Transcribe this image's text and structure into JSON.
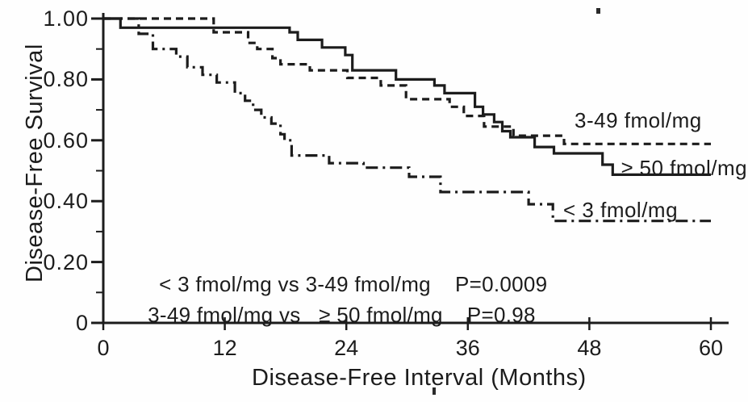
{
  "figure": {
    "description": "Kaplan-Meier disease-free survival curves by receptor level (fmol/mg), scanned journal figure"
  },
  "chart_data": {
    "type": "line",
    "subtype": "kaplan-meier-step",
    "title": "",
    "xlabel": "Disease-Free Interval (Months)",
    "ylabel": "Disease-Free Survival",
    "xlim": [
      0,
      60
    ],
    "ylim": [
      0,
      1.0
    ],
    "grid": false,
    "x_ticks": [
      0,
      12,
      24,
      36,
      48,
      60
    ],
    "x_tick_labels": [
      "0",
      "12",
      "24",
      "36",
      "48",
      "60"
    ],
    "y_ticks": [
      0,
      0.2,
      0.4,
      0.6,
      0.8,
      1.0
    ],
    "y_tick_labels": [
      "0",
      "0.20",
      "0.40",
      "0.60",
      "0.80",
      "1.00"
    ],
    "y_minor_ticks": [
      0.1,
      0.3,
      0.5,
      0.7,
      0.9
    ],
    "legend_position": "right-of-curve-ends",
    "colors": {
      "ink": "#1c1c1c",
      "background": "#fefefe"
    },
    "series": [
      {
        "name": "3-49 fmol/mg",
        "line_style": "dashed",
        "points": [
          [
            0,
            1.0
          ],
          [
            10.9,
            0.955
          ],
          [
            14.3,
            0.92
          ],
          [
            15.2,
            0.9
          ],
          [
            16.7,
            0.87
          ],
          [
            17.5,
            0.85
          ],
          [
            20.4,
            0.83
          ],
          [
            24.1,
            0.805
          ],
          [
            27.4,
            0.78
          ],
          [
            29.9,
            0.735
          ],
          [
            34.2,
            0.71
          ],
          [
            35.6,
            0.68
          ],
          [
            37.6,
            0.645
          ],
          [
            40.5,
            0.615
          ],
          [
            45.5,
            0.588
          ]
        ],
        "end_month": 60,
        "final_survival": 0.59
      },
      {
        "name": "≥ 50 fmol/mg",
        "line_style": "solid",
        "points": [
          [
            0,
            1.0
          ],
          [
            1.7,
            0.97
          ],
          [
            18.4,
            0.955
          ],
          [
            19.2,
            0.93
          ],
          [
            21.6,
            0.905
          ],
          [
            23.9,
            0.88
          ],
          [
            24.6,
            0.83
          ],
          [
            28.9,
            0.8
          ],
          [
            32.7,
            0.78
          ],
          [
            33.7,
            0.755
          ],
          [
            36.7,
            0.71
          ],
          [
            37.5,
            0.685
          ],
          [
            38.6,
            0.66
          ],
          [
            39.4,
            0.63
          ],
          [
            40.2,
            0.61
          ],
          [
            42.6,
            0.578
          ],
          [
            44.5,
            0.557
          ],
          [
            49.3,
            0.52
          ],
          [
            50.3,
            0.487
          ]
        ],
        "end_month": 60,
        "final_survival": 0.49
      },
      {
        "name": "< 3 fmol/mg",
        "line_style": "dash-dot",
        "points": [
          [
            0,
            1.0
          ],
          [
            3.5,
            0.95
          ],
          [
            4.9,
            0.9
          ],
          [
            7.2,
            0.875
          ],
          [
            8.3,
            0.84
          ],
          [
            9.8,
            0.815
          ],
          [
            11.2,
            0.79
          ],
          [
            13.0,
            0.755
          ],
          [
            14.0,
            0.73
          ],
          [
            14.8,
            0.7
          ],
          [
            15.6,
            0.675
          ],
          [
            16.6,
            0.655
          ],
          [
            17.5,
            0.62
          ],
          [
            17.9,
            0.6
          ],
          [
            18.6,
            0.55
          ],
          [
            22.3,
            0.525
          ],
          [
            25.7,
            0.51
          ],
          [
            30.2,
            0.48
          ],
          [
            33.3,
            0.43
          ],
          [
            42.0,
            0.39
          ],
          [
            44.4,
            0.335
          ]
        ],
        "end_month": 60,
        "final_survival": 0.34
      }
    ],
    "comparisons": [
      {
        "text": "< 3 fmol/mg vs 3-49 fmol/mg",
        "p": "P=0.0009"
      },
      {
        "text": "3-49 fmol/mg vs   ≥ 50 fmol/mg",
        "p": "P=0.98"
      }
    ]
  }
}
